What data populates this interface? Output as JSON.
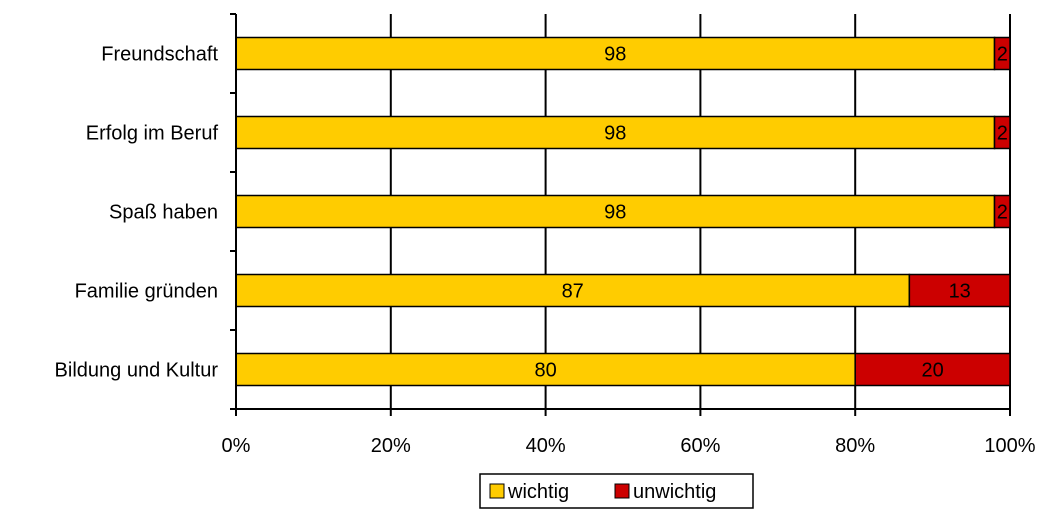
{
  "chart_data": {
    "type": "bar",
    "orientation": "horizontal",
    "stacked": "percent",
    "categories": [
      "Freundschaft",
      "Erfolg im Beruf",
      "Spaß haben",
      "Familie gründen",
      "Bildung und Kultur"
    ],
    "series": [
      {
        "name": "wichtig",
        "values": [
          98,
          98,
          98,
          87,
          80
        ],
        "color": "#FFCC00"
      },
      {
        "name": "unwichtig",
        "values": [
          2,
          2,
          2,
          13,
          20
        ],
        "color": "#CC0000"
      }
    ],
    "xlim": [
      0,
      100
    ],
    "x_ticks": [
      0,
      20,
      40,
      60,
      80,
      100
    ],
    "x_tick_labels": [
      "0%",
      "20%",
      "40%",
      "60%",
      "80%",
      "100%"
    ],
    "grid": true,
    "legend_position": "bottom"
  }
}
